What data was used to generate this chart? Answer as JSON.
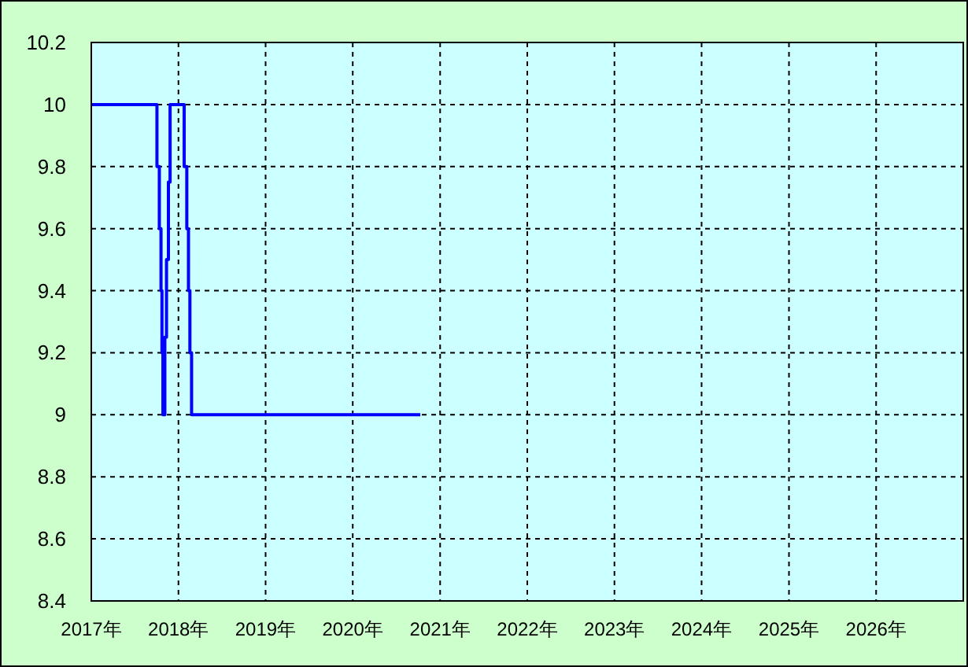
{
  "chart_data": {
    "type": "step",
    "x": [
      "2017-01-01",
      "2017-10-03",
      "2017-10-13",
      "2017-10-20",
      "2017-10-24",
      "2017-10-28",
      "2017-11-05",
      "2017-11-12",
      "2017-11-20",
      "2017-11-27",
      "2018-01-25",
      "2018-02-05",
      "2018-02-12",
      "2018-02-18",
      "2018-02-25",
      "2020-10-10"
    ],
    "series": [
      {
        "color": "#0000ff",
        "values": [
          10,
          9.8,
          9.6,
          9.4,
          9.2,
          9,
          9.25,
          9.5,
          9.75,
          10,
          9.8,
          9.6,
          9.4,
          9.2,
          9,
          9
        ]
      }
    ],
    "xlim": [
      "2017",
      "2027"
    ],
    "xticks": [
      {
        "value": "2017",
        "label": "2017年"
      },
      {
        "value": "2018",
        "label": "2018年"
      },
      {
        "value": "2019",
        "label": "2019年"
      },
      {
        "value": "2020",
        "label": "2020年"
      },
      {
        "value": "2021",
        "label": "2021年"
      },
      {
        "value": "2022",
        "label": "2022年"
      },
      {
        "value": "2023",
        "label": "2023年"
      },
      {
        "value": "2024",
        "label": "2024年"
      },
      {
        "value": "2025",
        "label": "2025年"
      },
      {
        "value": "2026",
        "label": "2026年"
      }
    ],
    "ylim": [
      8.4,
      10.2
    ],
    "yticks": [
      8.4,
      8.6,
      8.8,
      9,
      9.2,
      9.4,
      9.6,
      9.8,
      10,
      10.2
    ],
    "grid": true
  }
}
